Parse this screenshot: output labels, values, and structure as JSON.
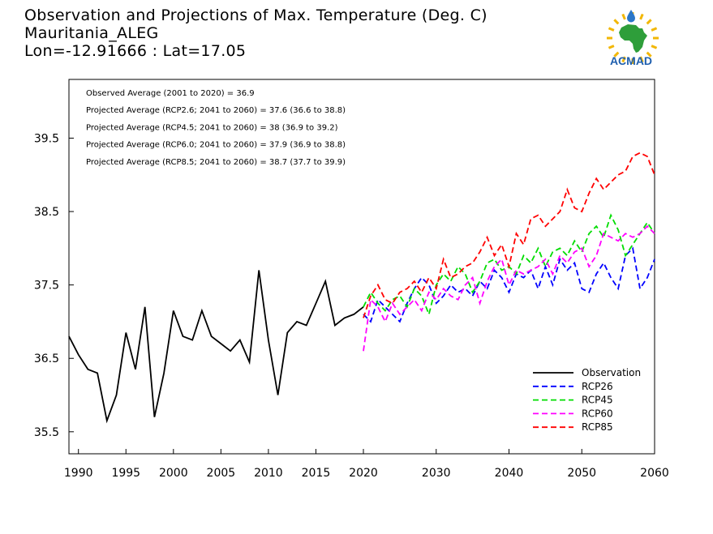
{
  "title": {
    "line1": "Observation and Projections of Max. Temperature (Deg. C)",
    "line2": "Mauritania_ALEG",
    "line3": "Lon=-12.91666 : Lat=17.05"
  },
  "logo": {
    "text": "ACMAD",
    "colors": {
      "africa": "#2e9e3a",
      "rays": "#f2b705",
      "drop": "#2a76c8",
      "text": "#1f5fae"
    }
  },
  "chart_data": {
    "type": "line",
    "xlim": [
      1989,
      2060
    ],
    "ylim": [
      35.2,
      40.3
    ],
    "x_ticks": [
      1990,
      1995,
      2000,
      2005,
      2010,
      2015,
      2020,
      2030,
      2040,
      2050,
      2060
    ],
    "y_ticks": [
      35.5,
      36.5,
      37.5,
      38.5,
      39.5
    ],
    "annotations": [
      "Observed Average (2001 to 2020) = 36.9",
      "Projected Average (RCP2.6; 2041 to 2060) = 37.6 (36.6 to 38.8)",
      "Projected Average (RCP4.5; 2041 to 2060) = 38 (36.9 to 39.2)",
      "Projected Average (RCP6.0; 2041 to 2060) = 37.9 (36.9 to 38.8)",
      "Projected Average (RCP8.5; 2041 to 2060) = 38.7 (37.7 to 39.9)"
    ],
    "legend_position": "bottom-right",
    "series": [
      {
        "name": "Observation",
        "color": "#000000",
        "dashed": false,
        "x": [
          1989,
          1990,
          1991,
          1992,
          1993,
          1994,
          1995,
          1996,
          1997,
          1998,
          1999,
          2000,
          2001,
          2002,
          2003,
          2004,
          2005,
          2006,
          2007,
          2008,
          2009,
          2010,
          2011,
          2012,
          2013,
          2014,
          2015,
          2016,
          2017,
          2018,
          2019,
          2020
        ],
        "y": [
          36.8,
          36.55,
          36.35,
          36.3,
          35.65,
          36.0,
          36.85,
          36.35,
          37.2,
          35.7,
          36.3,
          37.15,
          36.8,
          36.75,
          37.15,
          36.8,
          36.7,
          36.6,
          36.75,
          36.45,
          37.7,
          36.75,
          36.0,
          36.85,
          37.0,
          36.95,
          37.25,
          37.55,
          36.95,
          37.05,
          37.1,
          37.2
        ]
      },
      {
        "name": "RCP26",
        "color": "#0000ff",
        "dashed": true,
        "x": [
          2020,
          2021,
          2022,
          2023,
          2024,
          2025,
          2026,
          2027,
          2028,
          2029,
          2030,
          2031,
          2032,
          2033,
          2034,
          2035,
          2036,
          2037,
          2038,
          2039,
          2040,
          2041,
          2042,
          2043,
          2044,
          2045,
          2046,
          2047,
          2048,
          2049,
          2050,
          2051,
          2052,
          2053,
          2054,
          2055,
          2056,
          2057,
          2058,
          2059,
          2060
        ],
        "y": [
          37.1,
          37.0,
          37.3,
          37.2,
          37.1,
          37.0,
          37.25,
          37.45,
          37.6,
          37.5,
          37.25,
          37.35,
          37.5,
          37.4,
          37.45,
          37.35,
          37.55,
          37.45,
          37.7,
          37.6,
          37.4,
          37.65,
          37.6,
          37.7,
          37.45,
          37.75,
          37.5,
          37.85,
          37.7,
          37.8,
          37.45,
          37.4,
          37.65,
          37.8,
          37.6,
          37.45,
          37.9,
          38.0,
          37.45,
          37.6,
          37.85
        ]
      },
      {
        "name": "RCP45",
        "color": "#00dd00",
        "dashed": true,
        "x": [
          2020,
          2021,
          2022,
          2023,
          2024,
          2025,
          2026,
          2027,
          2028,
          2029,
          2030,
          2031,
          2032,
          2033,
          2034,
          2035,
          2036,
          2037,
          2038,
          2039,
          2040,
          2041,
          2042,
          2043,
          2044,
          2045,
          2046,
          2047,
          2048,
          2049,
          2050,
          2051,
          2052,
          2053,
          2054,
          2055,
          2056,
          2057,
          2058,
          2059,
          2060
        ],
        "y": [
          37.2,
          37.4,
          37.25,
          37.15,
          37.3,
          37.35,
          37.2,
          37.45,
          37.35,
          37.1,
          37.5,
          37.65,
          37.55,
          37.75,
          37.65,
          37.4,
          37.55,
          37.8,
          37.85,
          37.7,
          37.75,
          37.65,
          37.9,
          37.8,
          38.0,
          37.75,
          37.95,
          38.0,
          37.9,
          38.1,
          37.95,
          38.2,
          38.3,
          38.15,
          38.45,
          38.25,
          37.9,
          38.05,
          38.2,
          38.35,
          38.2
        ]
      },
      {
        "name": "RCP60",
        "color": "#ff00ff",
        "dashed": true,
        "x": [
          2020,
          2021,
          2022,
          2023,
          2024,
          2025,
          2026,
          2027,
          2028,
          2029,
          2030,
          2031,
          2032,
          2033,
          2034,
          2035,
          2036,
          2037,
          2038,
          2039,
          2040,
          2041,
          2042,
          2043,
          2044,
          2045,
          2046,
          2047,
          2048,
          2049,
          2050,
          2051,
          2052,
          2053,
          2054,
          2055,
          2056,
          2057,
          2058,
          2059,
          2060
        ],
        "y": [
          36.6,
          37.3,
          37.2,
          37.0,
          37.25,
          37.1,
          37.2,
          37.3,
          37.15,
          37.4,
          37.3,
          37.45,
          37.35,
          37.3,
          37.5,
          37.6,
          37.25,
          37.55,
          37.75,
          37.85,
          37.5,
          37.7,
          37.65,
          37.7,
          37.75,
          37.85,
          37.65,
          37.9,
          37.8,
          37.95,
          38.0,
          37.75,
          37.9,
          38.2,
          38.15,
          38.1,
          38.2,
          38.15,
          38.2,
          38.3,
          38.2
        ]
      },
      {
        "name": "RCP85",
        "color": "#ff0000",
        "dashed": true,
        "x": [
          2020,
          2021,
          2022,
          2023,
          2024,
          2025,
          2026,
          2027,
          2028,
          2029,
          2030,
          2031,
          2032,
          2033,
          2034,
          2035,
          2036,
          2037,
          2038,
          2039,
          2040,
          2041,
          2042,
          2043,
          2044,
          2045,
          2046,
          2047,
          2048,
          2049,
          2050,
          2051,
          2052,
          2053,
          2054,
          2055,
          2056,
          2057,
          2058,
          2059,
          2060
        ],
        "y": [
          37.05,
          37.35,
          37.5,
          37.3,
          37.25,
          37.4,
          37.45,
          37.55,
          37.4,
          37.6,
          37.45,
          37.85,
          37.6,
          37.65,
          37.75,
          37.8,
          37.95,
          38.15,
          37.9,
          38.05,
          37.75,
          38.2,
          38.05,
          38.4,
          38.45,
          38.3,
          38.4,
          38.5,
          38.8,
          38.55,
          38.5,
          38.75,
          38.95,
          38.8,
          38.9,
          39.0,
          39.05,
          39.25,
          39.3,
          39.25,
          39.0
        ]
      }
    ]
  }
}
